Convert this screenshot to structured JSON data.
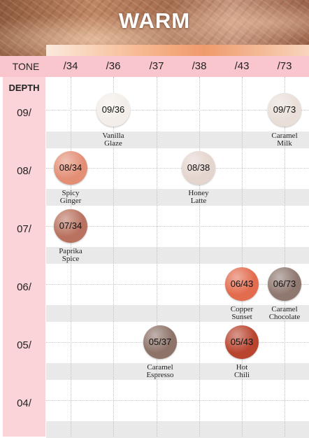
{
  "header": {
    "title": "WARM"
  },
  "tone_label": "TONE",
  "tones": [
    "/34",
    "/36",
    "/37",
    "/38",
    "/43",
    "/73"
  ],
  "depth_label": "DEPTH",
  "depths": [
    "09/",
    "08/",
    "07/",
    "06/",
    "05/",
    "04/"
  ],
  "shades": [
    {
      "code": "09/36",
      "name_line1": "Vanilla",
      "name_line2": "Glaze",
      "color": "#f3eee9"
    },
    {
      "code": "09/73",
      "name_line1": "Caramel",
      "name_line2": "Milk",
      "color": "#e9dfd8"
    },
    {
      "code": "08/34",
      "name_line1": "Spicy",
      "name_line2": "Ginger",
      "color": "#e38f76"
    },
    {
      "code": "08/38",
      "name_line1": "Honey",
      "name_line2": "Latte",
      "color": "#e5d5cf"
    },
    {
      "code": "07/34",
      "name_line1": "Paprika",
      "name_line2": "Spice",
      "color": "#b9725f"
    },
    {
      "code": "06/43",
      "name_line1": "Copper",
      "name_line2": "Sunset",
      "color": "#e36b4e"
    },
    {
      "code": "06/73",
      "name_line1": "Caramel",
      "name_line2": "Chocolate",
      "color": "#8f7870"
    },
    {
      "code": "05/37",
      "name_line1": "Caramel",
      "name_line2": "Espresso",
      "color": "#8d7368"
    },
    {
      "code": "05/43",
      "name_line1": "Hot",
      "name_line2": "Chili",
      "color": "#b9452f"
    }
  ]
}
